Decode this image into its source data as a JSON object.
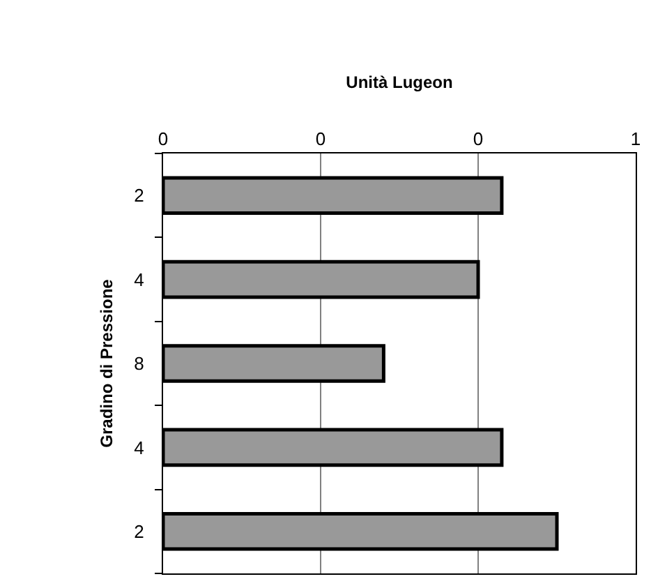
{
  "chart_data": {
    "type": "bar",
    "orientation": "horizontal",
    "xlabel": "Unità Lugeon",
    "ylabel": "Gradino di Pressione",
    "categories": [
      "2",
      "4",
      "8",
      "4",
      "2"
    ],
    "values": [
      0.43,
      0.4,
      0.28,
      0.43,
      0.5
    ],
    "color": "#999999",
    "xlim": [
      0,
      0.6
    ],
    "xticks": [
      {
        "value": 0,
        "label": "0"
      },
      {
        "value": 0.2,
        "label": "0"
      },
      {
        "value": 0.4,
        "label": "0"
      },
      {
        "value": 0.6,
        "label": "1"
      }
    ],
    "grid": "x",
    "legend": false
  }
}
